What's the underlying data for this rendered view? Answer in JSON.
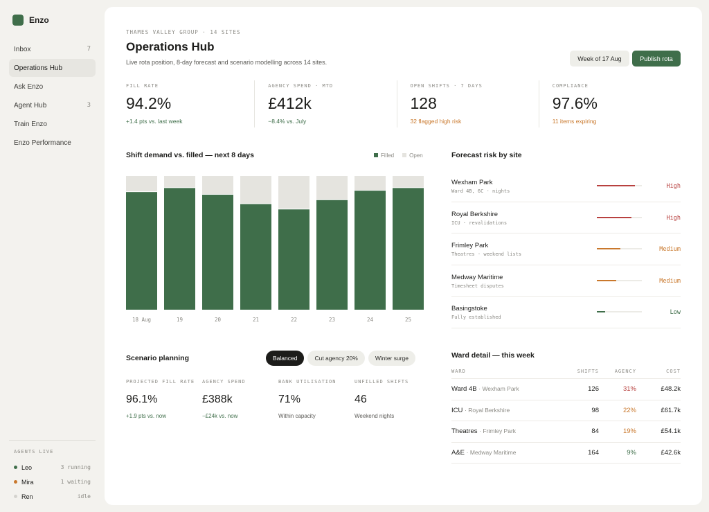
{
  "brand": {
    "name": "Enzo"
  },
  "sidebar": {
    "items": [
      {
        "label": "Inbox",
        "count": "7",
        "active": false
      },
      {
        "label": "Operations Hub",
        "count": "",
        "active": true
      },
      {
        "label": "Ask Enzo",
        "count": "",
        "active": false
      },
      {
        "label": "Agent Hub",
        "count": "3",
        "active": false
      },
      {
        "label": "Train Enzo",
        "count": "",
        "active": false
      },
      {
        "label": "Enzo Performance",
        "count": "",
        "active": false
      }
    ],
    "agents_title": "AGENTS LIVE",
    "agents": [
      {
        "name": "Leo",
        "status": "3 running",
        "color": "#3f6e4a"
      },
      {
        "name": "Mira",
        "status": "1 waiting",
        "color": "#c9782c"
      },
      {
        "name": "Ren",
        "status": "idle",
        "color": "#d4d3ce"
      }
    ]
  },
  "header": {
    "eyebrow": "THAMES VALLEY GROUP · 14 SITES",
    "title": "Operations Hub",
    "subtitle": "Live rota position, 8-day forecast and scenario modelling across 14 sites.",
    "week_button": "Week of 17 Aug",
    "publish_button": "Publish rota"
  },
  "kpis": [
    {
      "label": "FILL RATE",
      "value": "94.2%",
      "delta": "+1.4 pts vs. last week",
      "delta_color": "#3f6e4a"
    },
    {
      "label": "AGENCY SPEND · MTD",
      "value": "£412k",
      "delta": "−8.4% vs. July",
      "delta_color": "#3f6e4a"
    },
    {
      "label": "OPEN SHIFTS · 7 DAYS",
      "value": "128",
      "delta": "32 flagged high risk",
      "delta_color": "#c9782c"
    },
    {
      "label": "COMPLIANCE",
      "value": "97.6%",
      "delta": "11 items expiring",
      "delta_color": "#c9782c"
    }
  ],
  "chart": {
    "title": "Shift demand vs. filled — next 8 days",
    "legend": {
      "filled": "Filled",
      "open": "Open"
    }
  },
  "chart_data": {
    "type": "bar",
    "stacked": true,
    "categories": [
      "18 Aug",
      "19",
      "20",
      "21",
      "22",
      "23",
      "24",
      "25"
    ],
    "series": [
      {
        "name": "Filled",
        "values": [
          88,
          91,
          86,
          79,
          75,
          82,
          89,
          91
        ],
        "color": "#3f6e4a"
      },
      {
        "name": "Open",
        "values": [
          12,
          9,
          14,
          21,
          25,
          18,
          11,
          9
        ],
        "color": "#e5e4df"
      }
    ],
    "ylim": [
      0,
      100
    ],
    "legend_position": "top-right",
    "grid": false
  },
  "risk": {
    "title": "Forecast risk by site",
    "sites": [
      {
        "name": "Wexham Park",
        "detail": "Ward 4B, 6C · nights",
        "level": "High",
        "score": 0.85,
        "color": "#b8413f"
      },
      {
        "name": "Royal Berkshire",
        "detail": "ICU · revalidations",
        "level": "High",
        "score": 0.77,
        "color": "#b8413f"
      },
      {
        "name": "Frimley Park",
        "detail": "Theatres · weekend lists",
        "level": "Medium",
        "score": 0.52,
        "color": "#c9782c"
      },
      {
        "name": "Medway Maritime",
        "detail": "Timesheet disputes",
        "level": "Medium",
        "score": 0.43,
        "color": "#c9782c"
      },
      {
        "name": "Basingstoke",
        "detail": "Fully established",
        "level": "Low",
        "score": 0.18,
        "color": "#3f6e4a"
      }
    ]
  },
  "scenario": {
    "title": "Scenario planning",
    "tabs": [
      {
        "label": "Balanced",
        "active": true
      },
      {
        "label": "Cut agency 20%",
        "active": false
      },
      {
        "label": "Winter surge",
        "active": false
      }
    ],
    "metrics": [
      {
        "label": "PROJECTED FILL RATE",
        "value": "96.1%",
        "note": "+1.9 pts vs. now",
        "note_color": "#3f6e4a"
      },
      {
        "label": "AGENCY SPEND",
        "value": "£388k",
        "note": "−£24k vs. now",
        "note_color": "#3f6e4a"
      },
      {
        "label": "BANK UTILISATION",
        "value": "71%",
        "note": "Within capacity",
        "note_color": "#5a5955"
      },
      {
        "label": "UNFILLED SHIFTS",
        "value": "46",
        "note": "Weekend nights",
        "note_color": "#5a5955"
      }
    ]
  },
  "ward": {
    "title": "Ward detail — this week",
    "columns": {
      "ward": "WARD",
      "shifts": "SHIFTS",
      "agency": "AGENCY",
      "cost": "COST"
    },
    "rows": [
      {
        "ward": "Ward 4B",
        "site": "· Wexham Park",
        "shifts": "126",
        "agency": "31%",
        "agency_color": "#b8413f",
        "cost": "£48.2k"
      },
      {
        "ward": "ICU",
        "site": "· Royal Berkshire",
        "shifts": "98",
        "agency": "22%",
        "agency_color": "#c9782c",
        "cost": "£61.7k"
      },
      {
        "ward": "Theatres",
        "site": "· Frimley Park",
        "shifts": "84",
        "agency": "19%",
        "agency_color": "#c9782c",
        "cost": "£54.1k"
      },
      {
        "ward": "A&E",
        "site": "· Medway Maritime",
        "shifts": "164",
        "agency": "9%",
        "agency_color": "#3f6e4a",
        "cost": "£42.6k"
      }
    ]
  }
}
